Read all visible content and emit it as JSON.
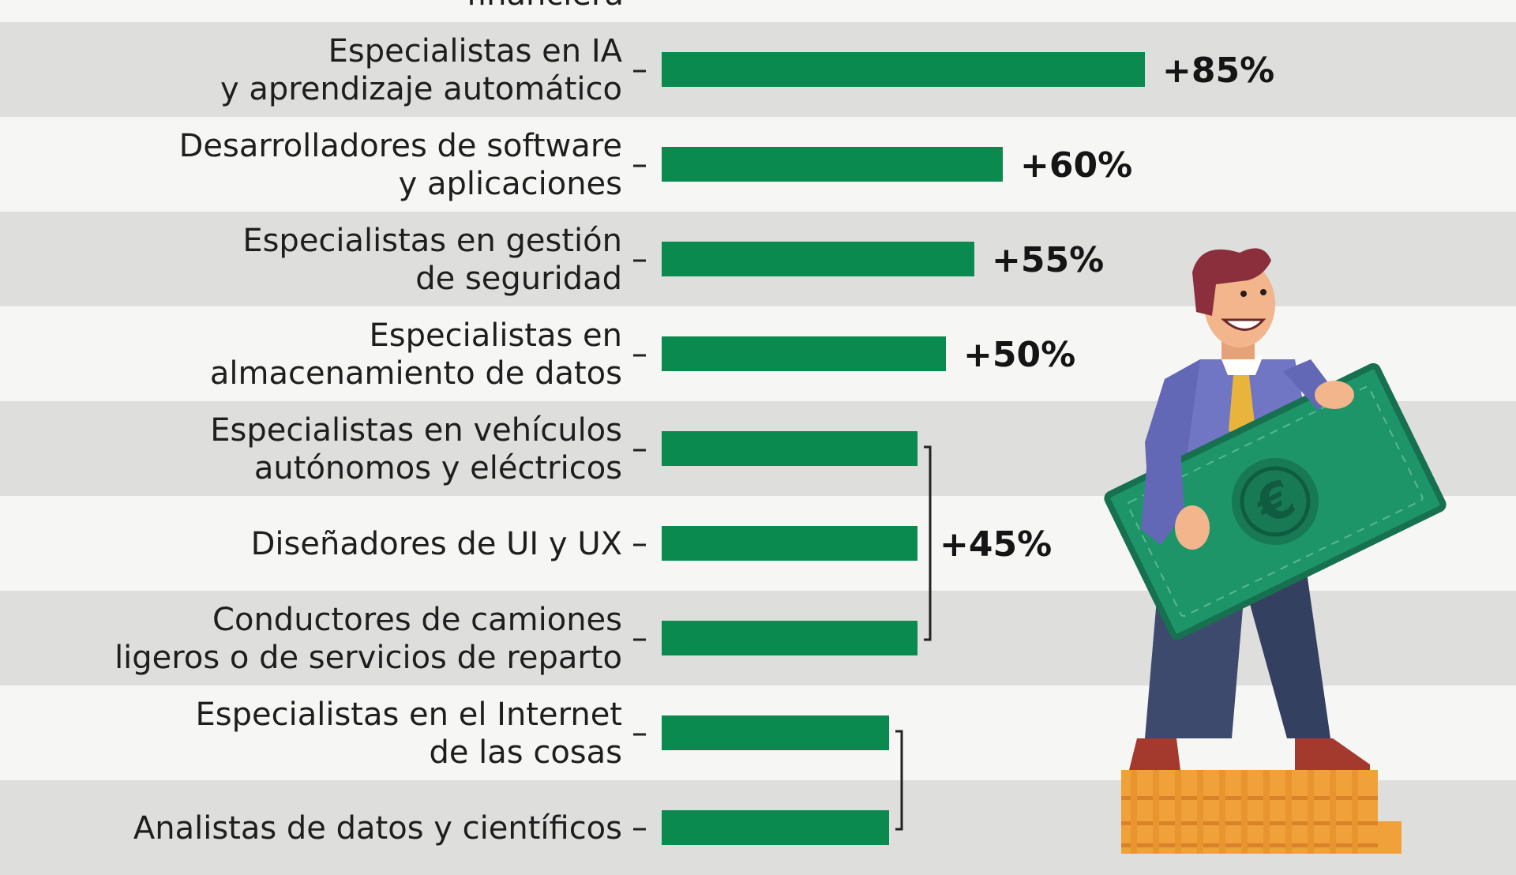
{
  "chart_data": {
    "type": "bar",
    "orientation": "horizontal",
    "top_fragment": "financiera",
    "categories": [
      [
        "Especialistas en IA",
        "y aprendizaje automático"
      ],
      [
        "Desarrolladores de software",
        "y aplicaciones"
      ],
      [
        "Especialistas en gestión",
        "de seguridad"
      ],
      [
        "Especialistas en",
        "almacenamiento de datos"
      ],
      [
        "Especialistas en vehículos",
        "autónomos y eléctricos"
      ],
      [
        "Diseñadores de UI y UX"
      ],
      [
        "Conductores de camiones",
        "ligeros o de servicios de reparto"
      ],
      [
        "Especialistas en el Internet",
        "de las cosas"
      ],
      [
        "Analistas de datos y científicos"
      ]
    ],
    "values": [
      85,
      60,
      55,
      50,
      45,
      45,
      45,
      40,
      40
    ],
    "value_labels": [
      "+85%",
      "+60%",
      "+55%",
      "+50%",
      "",
      "+45%",
      "",
      "",
      ""
    ],
    "groups": [
      {
        "label": "+45%",
        "from": 4,
        "to": 6
      },
      {
        "label": "",
        "from": 7,
        "to": 8
      }
    ],
    "bar_color": "#0b8a4f"
  },
  "illustration": {
    "subject": "businessman holding euro banknote standing on coin stack",
    "currency_symbol": "€"
  }
}
